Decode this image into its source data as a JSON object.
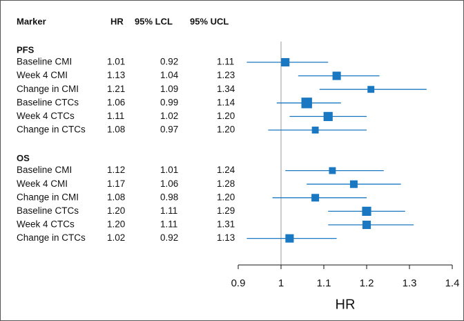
{
  "chart_data": {
    "type": "forest",
    "headers": [
      "Marker",
      "HR",
      "95% LCL",
      "95% UCL"
    ],
    "x_label": "HR",
    "xlim": [
      0.9,
      1.4
    ],
    "xticks": [
      0.9,
      1,
      1.1,
      1.2,
      1.3,
      1.4
    ],
    "reference": 1,
    "color": "#1a78c2",
    "groups": [
      {
        "name": "PFS",
        "rows": [
          {
            "label": "Baseline CMI",
            "values": [
              1.01,
              0.92,
              1.11
            ],
            "value_labels": [
              "1.01",
              "0.92",
              "1.11"
            ],
            "weight": 1.1
          },
          {
            "label": "Week 4 CMI",
            "values": [
              1.13,
              1.04,
              1.23
            ],
            "value_labels": [
              "1.13",
              "1.04",
              "1.23"
            ],
            "weight": 1.1
          },
          {
            "label": "Change in CMI",
            "values": [
              1.21,
              1.09,
              1.34
            ],
            "value_labels": [
              "1.21",
              "1.09",
              "1.34"
            ],
            "weight": 0.9
          },
          {
            "label": "Baseline CTCs",
            "values": [
              1.06,
              0.99,
              1.14
            ],
            "value_labels": [
              "1.06",
              "0.99",
              "1.14"
            ],
            "weight": 1.4
          },
          {
            "label": "Week 4 CTCs",
            "values": [
              1.11,
              1.02,
              1.2
            ],
            "value_labels": [
              "1.11",
              "1.02",
              "1.20"
            ],
            "weight": 1.2
          },
          {
            "label": "Change in CTCs",
            "values": [
              1.08,
              0.97,
              1.2
            ],
            "value_labels": [
              "1.08",
              "0.97",
              "1.20"
            ],
            "weight": 0.9
          }
        ]
      },
      {
        "name": "OS",
        "rows": [
          {
            "label": "Baseline CMI",
            "values": [
              1.12,
              1.01,
              1.24
            ],
            "value_labels": [
              "1.12",
              "1.01",
              "1.24"
            ],
            "weight": 0.9
          },
          {
            "label": "Week 4 CMI",
            "values": [
              1.17,
              1.06,
              1.28
            ],
            "value_labels": [
              "1.17",
              "1.06",
              "1.28"
            ],
            "weight": 1.0
          },
          {
            "label": "Change in CMI",
            "values": [
              1.08,
              0.98,
              1.2
            ],
            "value_labels": [
              "1.08",
              "0.98",
              "1.20"
            ],
            "weight": 1.0
          },
          {
            "label": "Baseline CTCs",
            "values": [
              1.2,
              1.11,
              1.29
            ],
            "value_labels": [
              "1.20",
              "1.11",
              "1.29"
            ],
            "weight": 1.2
          },
          {
            "label": "Week 4 CTCs",
            "values": [
              1.2,
              1.11,
              1.31
            ],
            "value_labels": [
              "1.20",
              "1.11",
              "1.31"
            ],
            "weight": 1.1
          },
          {
            "label": "Change in CTCs",
            "values": [
              1.02,
              0.92,
              1.13
            ],
            "value_labels": [
              "1.02",
              "0.92",
              "1.13"
            ],
            "weight": 1.1
          }
        ]
      }
    ]
  }
}
